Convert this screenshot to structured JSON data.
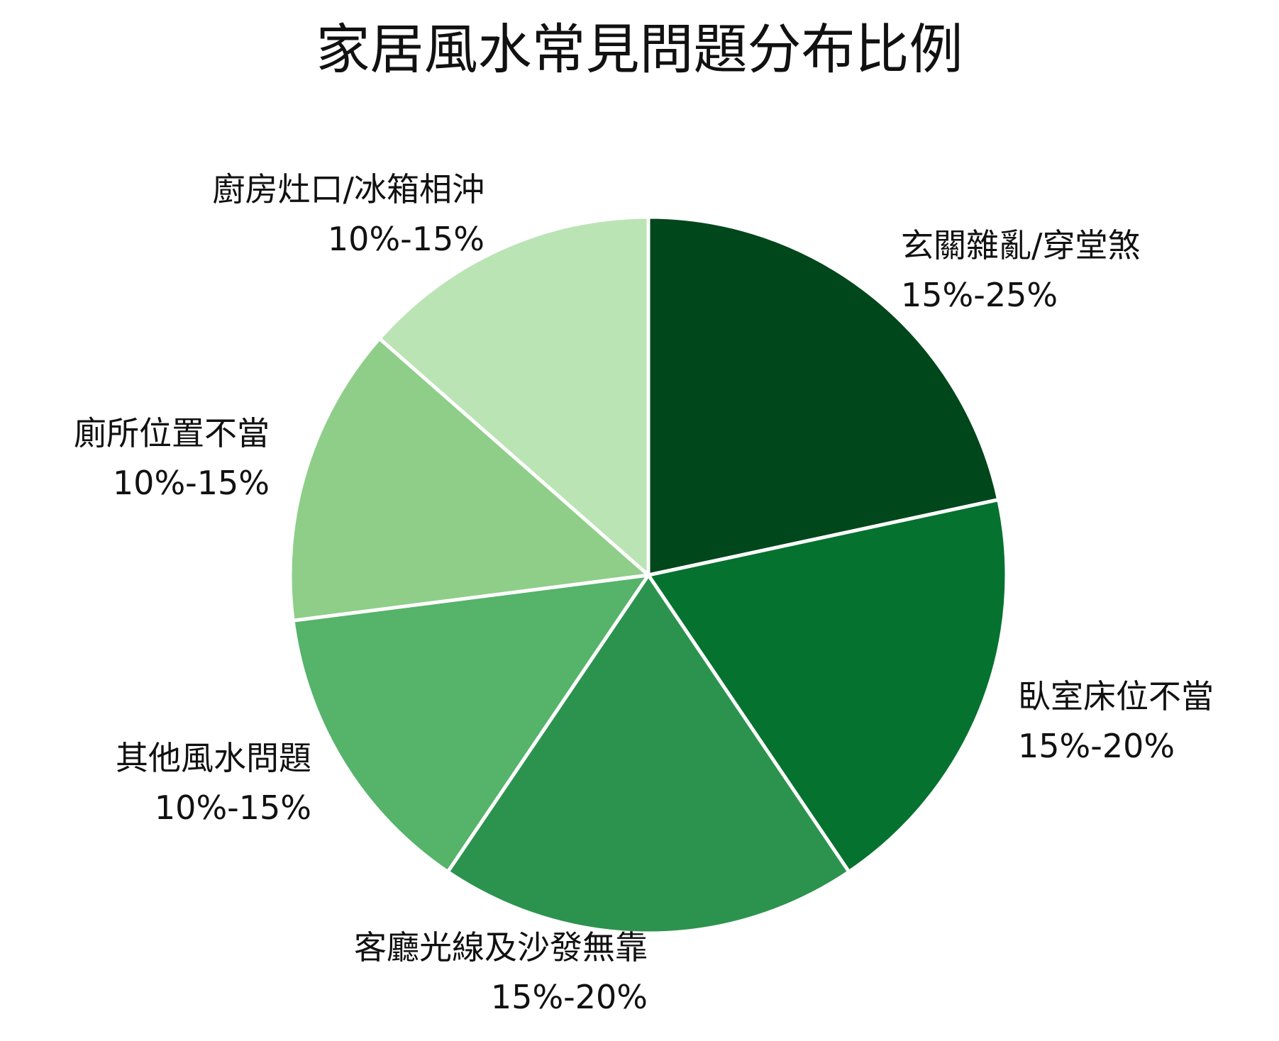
{
  "chart_data": {
    "type": "pie",
    "title": "家居風水常見問題分布比例",
    "start_angle_deg": 0,
    "direction": "clockwise",
    "slices": [
      {
        "name": "玄關雜亂/穿堂煞",
        "range_label": "15%-25%",
        "value": 20,
        "color": "#00471b"
      },
      {
        "name": "臥室床位不當",
        "range_label": "15%-20%",
        "value": 17.5,
        "color": "#06722f"
      },
      {
        "name": "客廳光線及沙發無靠",
        "range_label": "15%-20%",
        "value": 17.5,
        "color": "#2c934e"
      },
      {
        "name": "其他風水問題",
        "range_label": "10%-15%",
        "value": 12.5,
        "color": "#55b36a"
      },
      {
        "name": "廁所位置不當",
        "range_label": "10%-15%",
        "value": 12.5,
        "color": "#8ece89"
      },
      {
        "name": "廚房灶口/冰箱相沖",
        "range_label": "10%-15%",
        "value": 12.5,
        "color": "#bae4b4"
      }
    ]
  }
}
